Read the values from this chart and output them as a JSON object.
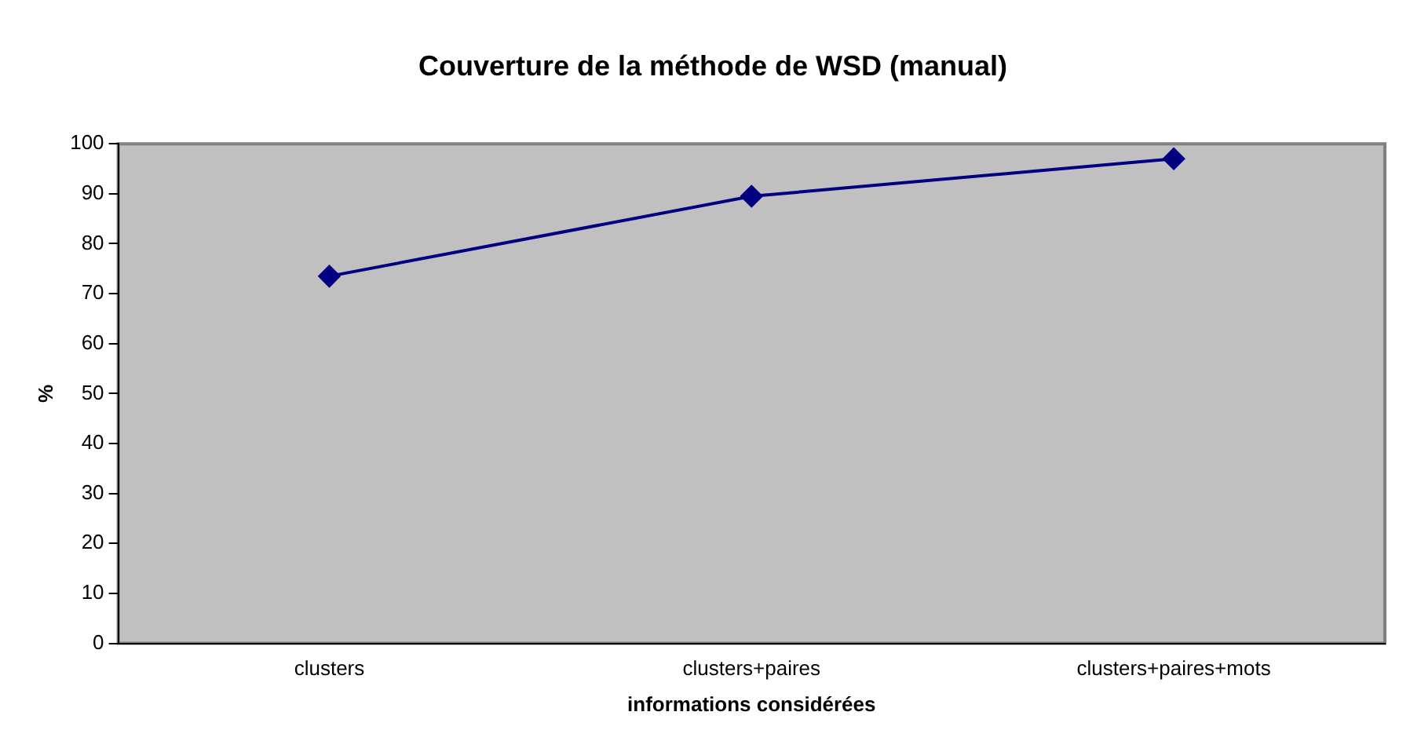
{
  "chart_data": {
    "type": "line",
    "title": "Couverture de la méthode de WSD (manual)",
    "xlabel": "informations considérées",
    "ylabel": "%",
    "categories": [
      "clusters",
      "clusters+paires",
      "clusters+paires+mots"
    ],
    "series": [
      {
        "color": "#000080",
        "values": [
          73.5,
          89.5,
          97
        ]
      }
    ],
    "ylim": [
      0,
      100
    ],
    "yticks": [
      0,
      10,
      20,
      30,
      40,
      50,
      60,
      70,
      80,
      90,
      100
    ],
    "grid": false,
    "legend": false,
    "marker": "diamond",
    "line_style": "solid"
  }
}
